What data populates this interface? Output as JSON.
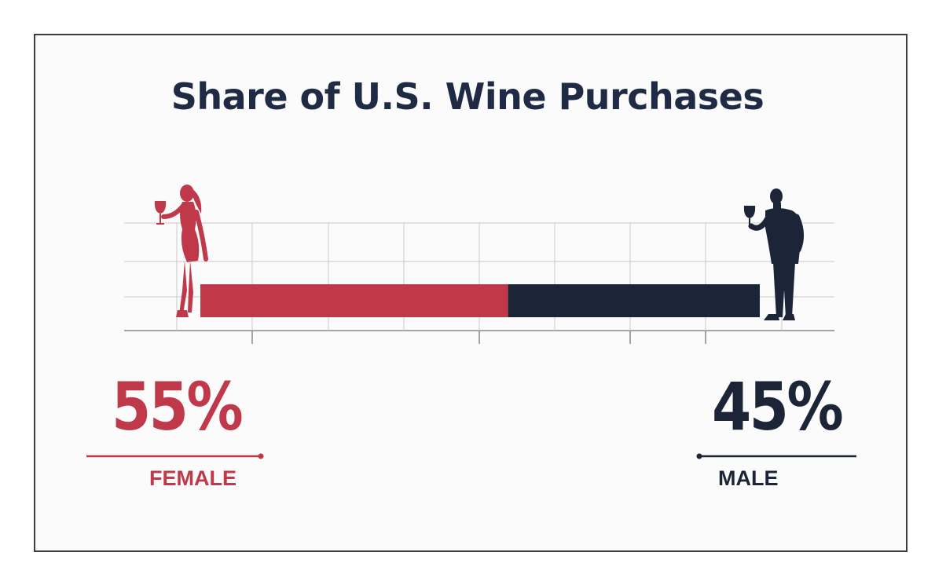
{
  "chart_data": {
    "type": "bar",
    "stacked": true,
    "orientation": "horizontal",
    "title": "Share of U.S. Wine Purchases",
    "unit": "%",
    "grid": true,
    "series": [
      {
        "name": "FEMALE",
        "value": 55,
        "label": "55%",
        "color": "#c0394b",
        "icon": "woman-with-wine-glass-icon"
      },
      {
        "name": "MALE",
        "value": 45,
        "label": "45%",
        "color": "#1b2537",
        "icon": "man-with-wine-glass-icon"
      }
    ]
  }
}
